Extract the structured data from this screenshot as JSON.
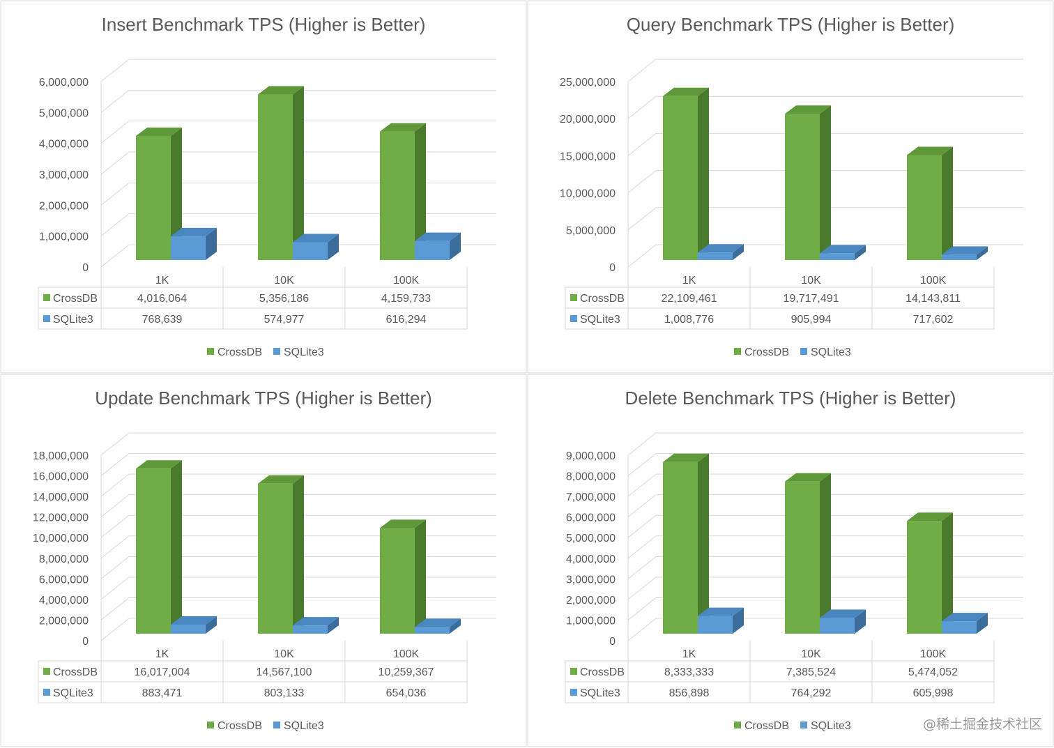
{
  "chart_data": [
    {
      "type": "bar",
      "title": "Insert Benchmark TPS (Higher is Better)",
      "categories": [
        "1K",
        "10K",
        "100K"
      ],
      "series": [
        {
          "name": "CrossDB",
          "values": [
            4016064,
            5356186,
            4159733
          ],
          "values_label": [
            "4,016,064",
            "5,356,186",
            "4,159,733"
          ]
        },
        {
          "name": "SQLite3",
          "values": [
            768639,
            574977,
            616294
          ],
          "values_label": [
            "768,639",
            "574,977",
            "616,294"
          ]
        }
      ],
      "ylim": [
        0,
        6000000
      ],
      "yticks": [
        "0",
        "1,000,000",
        "2,000,000",
        "3,000,000",
        "4,000,000",
        "5,000,000",
        "6,000,000"
      ],
      "grid": true,
      "legend": "bottom",
      "style": "3d-clustered-column-with-data-table"
    },
    {
      "type": "bar",
      "title": "Query Benchmark TPS (Higher is Better)",
      "categories": [
        "1K",
        "10K",
        "100K"
      ],
      "series": [
        {
          "name": "CrossDB",
          "values": [
            22109461,
            19717491,
            14143811
          ],
          "values_label": [
            "22,109,461",
            "19,717,491",
            "14,143,811"
          ]
        },
        {
          "name": "SQLite3",
          "values": [
            1008776,
            905994,
            717602
          ],
          "values_label": [
            "1,008,776",
            "905,994",
            "717,602"
          ]
        }
      ],
      "ylim": [
        0,
        25000000
      ],
      "yticks": [
        "0",
        "5,000,000",
        "10,000,000",
        "15,000,000",
        "20,000,000",
        "25,000,000"
      ],
      "grid": true,
      "legend": "bottom",
      "style": "3d-clustered-column-with-data-table"
    },
    {
      "type": "bar",
      "title": "Update Benchmark TPS (Higher is Better)",
      "categories": [
        "1K",
        "10K",
        "100K"
      ],
      "series": [
        {
          "name": "CrossDB",
          "values": [
            16017004,
            14567100,
            10259367
          ],
          "values_label": [
            "16,017,004",
            "14,567,100",
            "10,259,367"
          ]
        },
        {
          "name": "SQLite3",
          "values": [
            883471,
            803133,
            654036
          ],
          "values_label": [
            "883,471",
            "803,133",
            "654,036"
          ]
        }
      ],
      "ylim": [
        0,
        18000000
      ],
      "yticks": [
        "0",
        "2,000,000",
        "4,000,000",
        "6,000,000",
        "8,000,000",
        "10,000,000",
        "12,000,000",
        "14,000,000",
        "16,000,000",
        "18,000,000"
      ],
      "grid": true,
      "legend": "bottom",
      "style": "3d-clustered-column-with-data-table"
    },
    {
      "type": "bar",
      "title": "Delete Benchmark TPS (Higher is Better)",
      "categories": [
        "1K",
        "10K",
        "100K"
      ],
      "series": [
        {
          "name": "CrossDB",
          "values": [
            8333333,
            7385524,
            5474052
          ],
          "values_label": [
            "8,333,333",
            "7,385,524",
            "5,474,052"
          ]
        },
        {
          "name": "SQLite3",
          "values": [
            856898,
            764292,
            605998
          ],
          "values_label": [
            "856,898",
            "764,292",
            "605,998"
          ]
        }
      ],
      "ylim": [
        0,
        9000000
      ],
      "yticks": [
        "0",
        "1,000,000",
        "2,000,000",
        "3,000,000",
        "4,000,000",
        "5,000,000",
        "6,000,000",
        "7,000,000",
        "8,000,000",
        "9,000,000"
      ],
      "grid": true,
      "legend": "bottom",
      "style": "3d-clustered-column-with-data-table"
    }
  ],
  "colors": {
    "CrossDB": {
      "front": "#70AD47",
      "side": "#4A7A2C",
      "top": "#5E9838"
    },
    "SQLite3": {
      "front": "#5B9BD5",
      "side": "#3A6C9C",
      "top": "#4A86C0"
    },
    "text": "#595959",
    "grid": "#D9D9D9",
    "panel_border": "#D9D9D9"
  },
  "watermark": "@稀土掘金技术社区"
}
